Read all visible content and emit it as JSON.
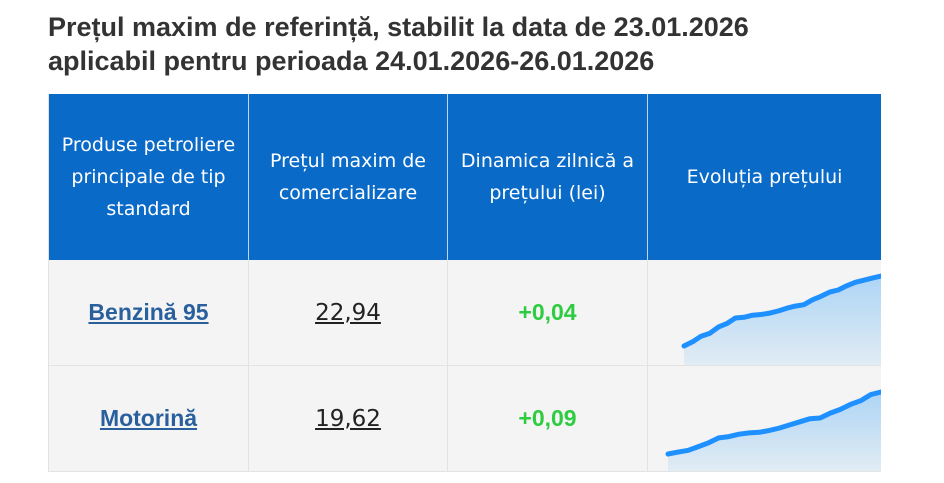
{
  "title": {
    "line1": "Prețul maxim de referință, stabilit la data de 23.01.2026",
    "line2": "aplicabil pentru perioada 24.01.2026-26.01.2026"
  },
  "table": {
    "headers": [
      "Produse petroliere principale de tip standard",
      "Prețul maxim de comercializare",
      "Dinamica zilnică a prețului (lei)",
      "Evoluția prețului"
    ],
    "rows": [
      {
        "product": "Benzină 95",
        "price": "22,94",
        "delta": "+0,04",
        "trend": [
          0.0,
          0.06,
          0.14,
          0.18,
          0.27,
          0.32,
          0.4,
          0.41,
          0.44,
          0.45,
          0.47,
          0.5,
          0.54,
          0.57,
          0.59,
          0.66,
          0.71,
          0.77,
          0.8,
          0.86,
          0.91,
          0.94,
          0.97,
          1.0
        ]
      },
      {
        "product": "Motorină",
        "price": "19,62",
        "delta": "+0,09",
        "trend": [
          0.0,
          0.03,
          0.06,
          0.12,
          0.18,
          0.26,
          0.28,
          0.32,
          0.34,
          0.35,
          0.38,
          0.42,
          0.47,
          0.52,
          0.57,
          0.58,
          0.66,
          0.72,
          0.8,
          0.86,
          0.96,
          1.0
        ]
      }
    ]
  },
  "colors": {
    "header_bg": "#0a6ac8",
    "positive_delta": "#2ecc40",
    "trend_line": "#1e90ff",
    "trend_fill": "#a9d3f5"
  }
}
